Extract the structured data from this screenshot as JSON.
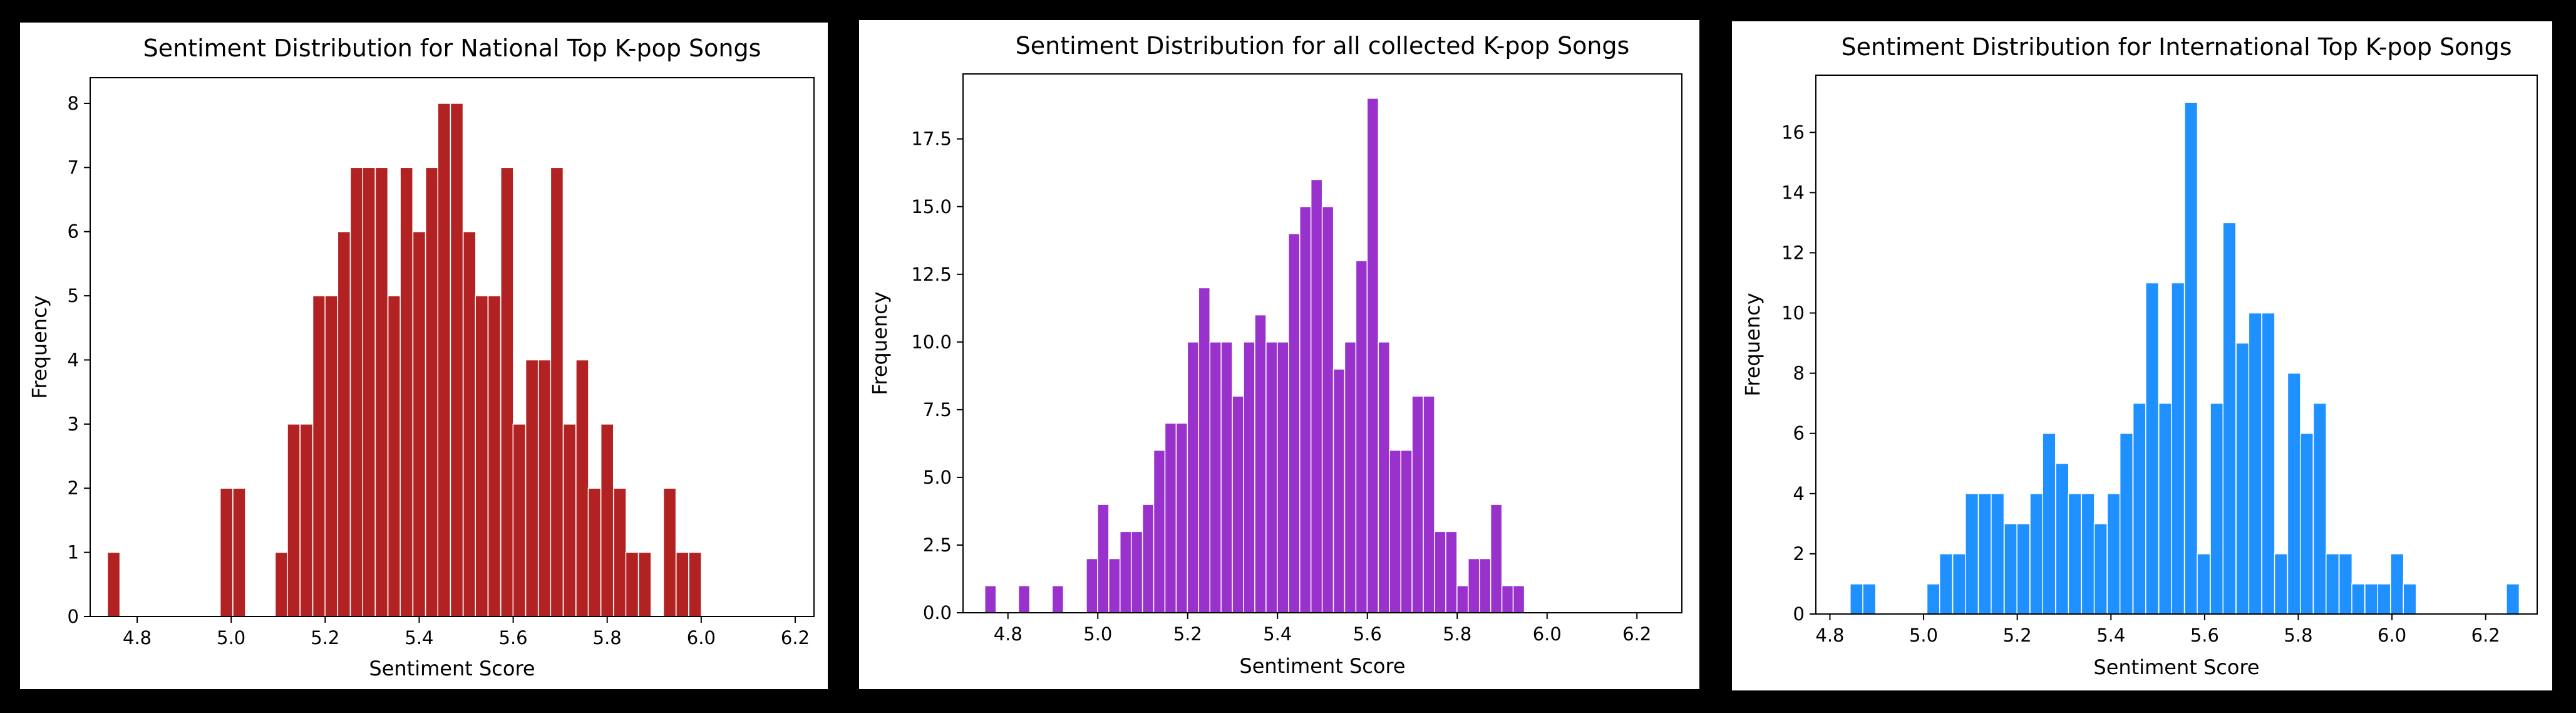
{
  "chart_data": [
    {
      "type": "bar",
      "title": "Sentiment Distribution for National Top K-pop Songs",
      "xlabel": "Sentiment Score",
      "ylabel": "Frequency",
      "color": "#b22222",
      "xlim": [
        4.7,
        6.24
      ],
      "ylim": [
        0,
        8.4
      ],
      "xticks": [
        "4.8",
        "5.0",
        "5.2",
        "5.4",
        "5.6",
        "5.8",
        "6.0",
        "6.2"
      ],
      "yticks": [
        "0",
        "1",
        "2",
        "3",
        "4",
        "5",
        "6",
        "7",
        "8"
      ],
      "bin_width": 0.0267,
      "x": [
        4.75,
        4.99,
        5.017,
        5.107,
        5.133,
        5.16,
        5.187,
        5.213,
        5.24,
        5.267,
        5.293,
        5.32,
        5.347,
        5.373,
        5.4,
        5.427,
        5.453,
        5.48,
        5.507,
        5.533,
        5.56,
        5.587,
        5.613,
        5.64,
        5.667,
        5.693,
        5.72,
        5.747,
        5.773,
        5.8,
        5.827,
        5.853,
        5.88,
        5.907,
        5.933,
        5.96,
        5.987,
        6.013,
        6.04,
        6.067
      ],
      "values": [
        1,
        2,
        2,
        1,
        3,
        3,
        5,
        5,
        6,
        7,
        7,
        7,
        5,
        7,
        6,
        7,
        8,
        8,
        6,
        5,
        5,
        7,
        3,
        4,
        4,
        7,
        3,
        4,
        2,
        3,
        2,
        1,
        1,
        0,
        2,
        1,
        1,
        0,
        0,
        0
      ]
    },
    {
      "type": "bar",
      "title": "Sentiment Distribution for all collected K-pop Songs",
      "xlabel": "Sentiment Score",
      "ylabel": "Frequency",
      "color": "#9932cc",
      "xlim": [
        4.7,
        6.3
      ],
      "ylim": [
        0,
        19.9
      ],
      "xticks": [
        "4.8",
        "5.0",
        "5.2",
        "5.4",
        "5.6",
        "5.8",
        "6.0",
        "6.2"
      ],
      "yticks": [
        "0.0",
        "2.5",
        "5.0",
        "7.5",
        "10.0",
        "12.5",
        "15.0",
        "17.5"
      ],
      "bin_width": 0.0251,
      "x": [
        4.761,
        4.836,
        4.911,
        4.987,
        5.012,
        5.037,
        5.062,
        5.087,
        5.112,
        5.137,
        5.162,
        5.187,
        5.212,
        5.237,
        5.262,
        5.287,
        5.312,
        5.337,
        5.362,
        5.387,
        5.412,
        5.437,
        5.462,
        5.487,
        5.512,
        5.537,
        5.562,
        5.587,
        5.612,
        5.637,
        5.662,
        5.687,
        5.712,
        5.737,
        5.762,
        5.787,
        5.812,
        5.837,
        5.862,
        5.887,
        5.912,
        5.937,
        5.962,
        5.987,
        6.012,
        6.037,
        6.062,
        6.212,
        6.237
      ],
      "values": [
        1,
        1,
        1,
        2,
        4,
        2,
        3,
        3,
        4,
        6,
        7,
        7,
        10,
        12,
        10,
        10,
        8,
        10,
        11,
        10,
        10,
        14,
        15,
        16,
        15,
        9,
        10,
        13,
        19,
        10,
        6,
        6,
        8,
        8,
        3,
        3,
        1,
        2,
        2,
        4,
        1,
        1,
        0,
        0,
        0,
        0,
        0,
        0,
        0
      ]
    },
    {
      "type": "bar",
      "title": "Sentiment Distribution for International Top K-pop Songs",
      "xlabel": "Sentiment Score",
      "ylabel": "Frequency",
      "color": "#1e90ff",
      "xlim": [
        4.77,
        6.31
      ],
      "ylim": [
        0,
        17.9
      ],
      "xticks": [
        "4.8",
        "5.0",
        "5.2",
        "5.4",
        "5.6",
        "5.8",
        "6.0",
        "6.2"
      ],
      "yticks": [
        "0",
        "2",
        "4",
        "6",
        "8",
        "10",
        "12",
        "14",
        "16"
      ],
      "bin_width": 0.0275,
      "x": [
        4.857,
        4.884,
        5.021,
        5.048,
        5.076,
        5.103,
        5.131,
        5.158,
        5.186,
        5.213,
        5.241,
        5.268,
        5.296,
        5.323,
        5.351,
        5.378,
        5.406,
        5.433,
        5.461,
        5.488,
        5.516,
        5.543,
        5.571,
        5.598,
        5.626,
        5.653,
        5.681,
        5.708,
        5.736,
        5.763,
        5.791,
        5.818,
        5.846,
        5.873,
        5.901,
        5.928,
        5.956,
        5.983,
        6.011,
        6.038,
        6.066,
        6.093,
        6.258
      ],
      "values": [
        1,
        1,
        1,
        2,
        2,
        4,
        4,
        4,
        3,
        3,
        4,
        6,
        5,
        4,
        4,
        3,
        4,
        6,
        7,
        11,
        7,
        11,
        17,
        2,
        7,
        13,
        9,
        10,
        10,
        2,
        8,
        6,
        7,
        2,
        2,
        1,
        1,
        1,
        2,
        1,
        0,
        0,
        1
      ]
    }
  ]
}
